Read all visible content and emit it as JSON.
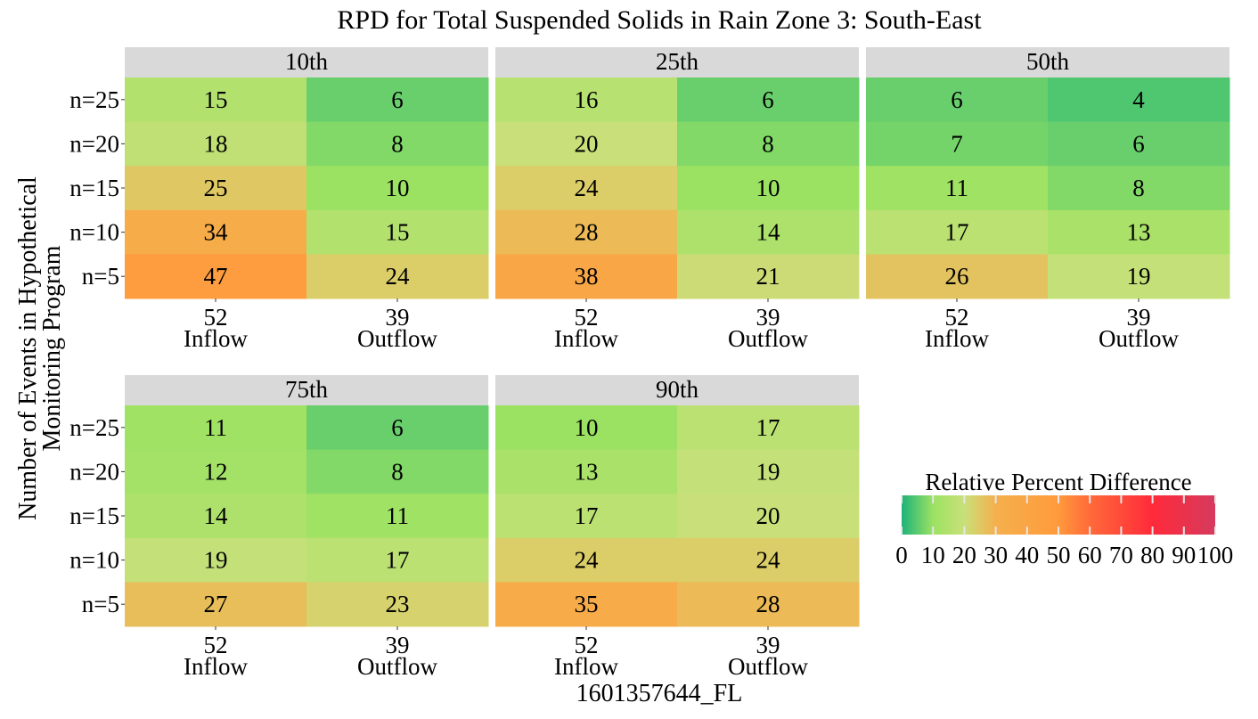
{
  "chart_data": {
    "type": "heatmap",
    "title": "RPD for Total Suspended Solids in Rain Zone 3: South-East",
    "xlabel": "1601357644_FL",
    "ylabel_lines": [
      "Number of Events in Hypothetical",
      "Monitoring Program"
    ],
    "rows": [
      "n=25",
      "n=20",
      "n=15",
      "n=10",
      "n=5"
    ],
    "columns": [
      {
        "count": "52",
        "label": "Inflow"
      },
      {
        "count": "39",
        "label": "Outflow"
      }
    ],
    "panels": [
      {
        "name": "10th",
        "values": [
          [
            15,
            6
          ],
          [
            18,
            8
          ],
          [
            25,
            10
          ],
          [
            34,
            15
          ],
          [
            47,
            24
          ]
        ]
      },
      {
        "name": "25th",
        "values": [
          [
            16,
            6
          ],
          [
            20,
            8
          ],
          [
            24,
            10
          ],
          [
            28,
            14
          ],
          [
            38,
            21
          ]
        ]
      },
      {
        "name": "50th",
        "values": [
          [
            6,
            4
          ],
          [
            7,
            6
          ],
          [
            11,
            8
          ],
          [
            17,
            13
          ],
          [
            26,
            19
          ]
        ]
      },
      {
        "name": "75th",
        "values": [
          [
            11,
            6
          ],
          [
            12,
            8
          ],
          [
            14,
            11
          ],
          [
            19,
            17
          ],
          [
            27,
            23
          ]
        ]
      },
      {
        "name": "90th",
        "values": [
          [
            10,
            17
          ],
          [
            13,
            19
          ],
          [
            17,
            20
          ],
          [
            24,
            24
          ],
          [
            35,
            28
          ]
        ]
      }
    ],
    "legend": {
      "title": "Relative Percent Difference",
      "ticks": [
        0,
        10,
        20,
        30,
        40,
        50,
        60,
        70,
        80,
        90,
        100
      ],
      "range": [
        0,
        100
      ],
      "placement": "right",
      "colorscale": [
        [
          0,
          "#1db37a"
        ],
        [
          10,
          "#9be262"
        ],
        [
          20,
          "#c9e07a"
        ],
        [
          30,
          "#f5b04d"
        ],
        [
          50,
          "#ff9a3c"
        ],
        [
          60,
          "#ff6a3a"
        ],
        [
          80,
          "#ff2a3a"
        ],
        [
          100,
          "#d63a5e"
        ]
      ]
    },
    "strip_color": "#d9d9d9"
  }
}
